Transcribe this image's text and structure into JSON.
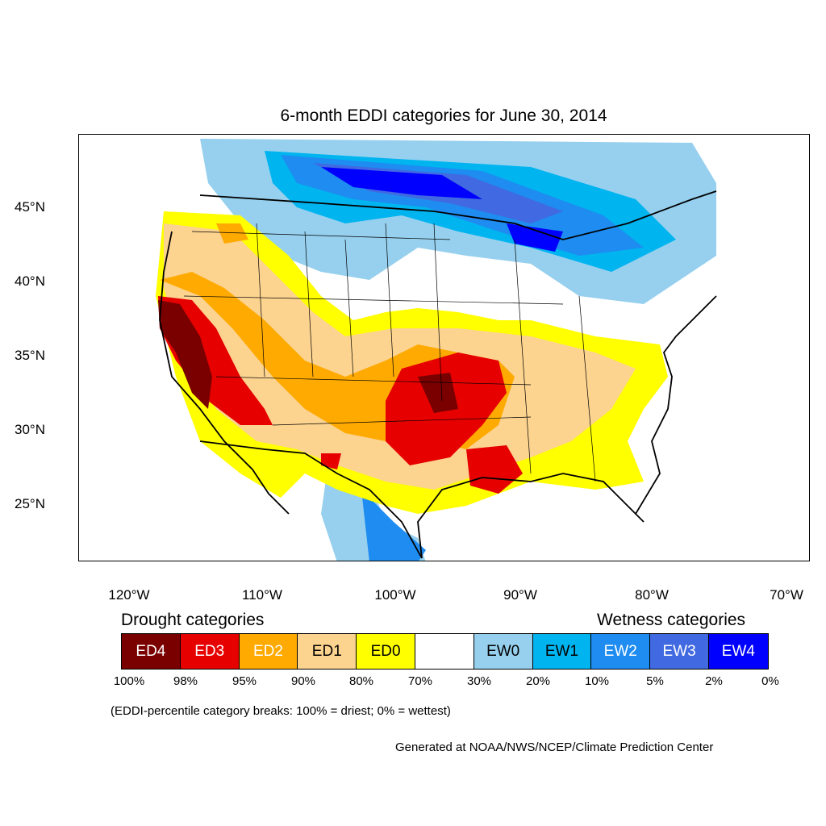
{
  "title": "6-month EDDI categories for June 30, 2014",
  "lat_labels": [
    "45°N",
    "40°N",
    "35°N",
    "30°N",
    "25°N"
  ],
  "lon_labels": [
    "120°W",
    "110°W",
    "100°W",
    "90°W",
    "80°W",
    "70°W"
  ],
  "legend": {
    "drought_title": "Drought categories",
    "wetness_title": "Wetness categories",
    "categories": [
      {
        "label": "ED4",
        "color": "#7a0000",
        "text_color": "#ffffff"
      },
      {
        "label": "ED3",
        "color": "#e60000",
        "text_color": "#ffffff"
      },
      {
        "label": "ED2",
        "color": "#ffaa00",
        "text_color": "#ffffff"
      },
      {
        "label": "ED1",
        "color": "#fcd38f",
        "text_color": "#000000"
      },
      {
        "label": "ED0",
        "color": "#ffff00",
        "text_color": "#000000"
      },
      {
        "label": "",
        "color": "#ffffff",
        "text_color": "#000000"
      },
      {
        "label": "EW0",
        "color": "#96d0ee",
        "text_color": "#000000"
      },
      {
        "label": "EW1",
        "color": "#00b4f0",
        "text_color": "#000000"
      },
      {
        "label": "EW2",
        "color": "#1e8cf0",
        "text_color": "#ffffff"
      },
      {
        "label": "EW3",
        "color": "#4169e1",
        "text_color": "#ffffff"
      },
      {
        "label": "EW4",
        "color": "#0000ff",
        "text_color": "#ffffff"
      }
    ],
    "breaks": [
      "100%",
      "98%",
      "95%",
      "90%",
      "80%",
      "70%",
      "30%",
      "20%",
      "10%",
      "5%",
      "2%",
      "0%"
    ]
  },
  "note": "(EDDI-percentile category breaks: 100% = driest; 0% = wettest)",
  "credit": "Generated at NOAA/NWS/NCEP/Climate Prediction Center"
}
